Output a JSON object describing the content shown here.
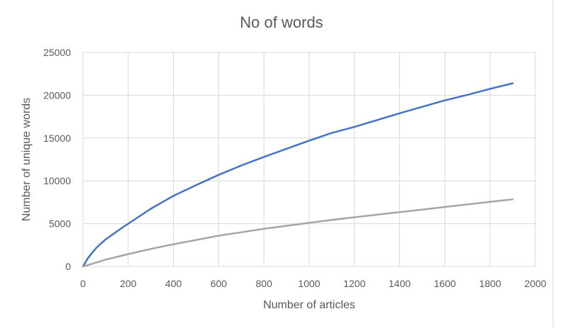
{
  "chart_data": {
    "type": "line",
    "title": "No of words",
    "xlabel": "Number of articles",
    "ylabel": "Number of unique words",
    "xlim": [
      0,
      2000
    ],
    "ylim": [
      0,
      25000
    ],
    "x_ticks": [
      0,
      200,
      400,
      600,
      800,
      1000,
      1200,
      1400,
      1600,
      1800,
      2000
    ],
    "y_ticks": [
      0,
      5000,
      10000,
      15000,
      20000,
      25000
    ],
    "grid": true,
    "legend": "none",
    "series": [
      {
        "color": "#4472c4",
        "x": [
          0,
          10,
          20,
          40,
          60,
          80,
          100,
          150,
          200,
          300,
          400,
          500,
          600,
          700,
          800,
          900,
          1000,
          1100,
          1200,
          1300,
          1400,
          1500,
          1600,
          1700,
          1800,
          1900
        ],
        "y": [
          0,
          450,
          900,
          1600,
          2200,
          2700,
          3150,
          4100,
          5000,
          6750,
          8250,
          9500,
          10700,
          11800,
          12800,
          13750,
          14700,
          15600,
          16300,
          17100,
          17900,
          18650,
          19400,
          20050,
          20750,
          21400
        ]
      },
      {
        "color": "#a5a5a5",
        "x": [
          0,
          20,
          50,
          100,
          200,
          300,
          400,
          500,
          600,
          700,
          800,
          900,
          1000,
          1100,
          1200,
          1300,
          1400,
          1500,
          1600,
          1700,
          1800,
          1900
        ],
        "y": [
          0,
          150,
          400,
          800,
          1450,
          2050,
          2600,
          3100,
          3600,
          4000,
          4400,
          4750,
          5100,
          5450,
          5750,
          6050,
          6350,
          6650,
          6950,
          7250,
          7550,
          7850
        ]
      }
    ]
  }
}
